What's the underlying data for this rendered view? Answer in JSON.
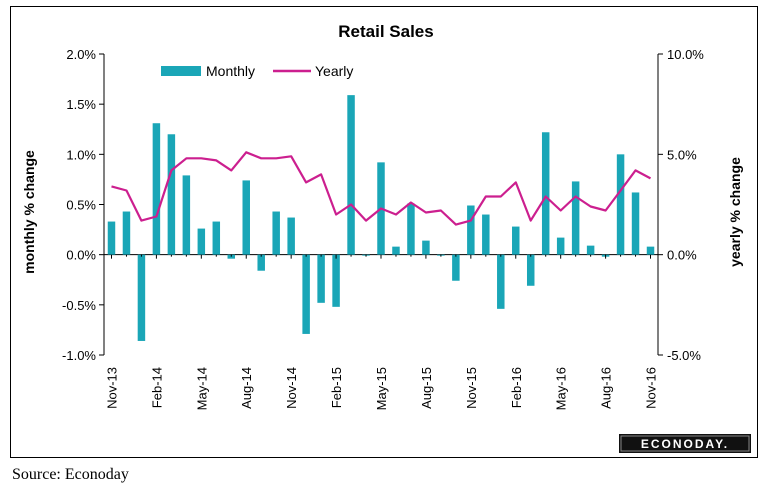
{
  "chart_data": {
    "type": "bar+line",
    "title": "Retail Sales",
    "y_left_label": "monthly % change",
    "y_right_label": "yearly % change",
    "y_left_ticks": [
      "2.0%",
      "1.5%",
      "1.0%",
      "0.5%",
      "0.0%",
      "-0.5%",
      "-1.0%"
    ],
    "y_right_ticks": [
      "10.0%",
      "5.0%",
      "0.0%",
      "-5.0%"
    ],
    "ylim_left": [
      -1.0,
      2.0
    ],
    "ylim_right": [
      -5.0,
      10.0
    ],
    "x_tick_labels": [
      "Nov-13",
      "Feb-14",
      "May-14",
      "Aug-14",
      "Nov-14",
      "Feb-15",
      "May-15",
      "Aug-15",
      "Nov-15",
      "Feb-16",
      "May-16",
      "Aug-16",
      "Nov-16"
    ],
    "categories": [
      "Nov-13",
      "Dec-13",
      "Jan-14",
      "Feb-14",
      "Mar-14",
      "Apr-14",
      "May-14",
      "Jun-14",
      "Jul-14",
      "Aug-14",
      "Sep-14",
      "Oct-14",
      "Nov-14",
      "Dec-14",
      "Jan-15",
      "Feb-15",
      "Mar-15",
      "Apr-15",
      "May-15",
      "Jun-15",
      "Jul-15",
      "Aug-15",
      "Sep-15",
      "Oct-15",
      "Nov-15",
      "Dec-15",
      "Jan-16",
      "Feb-16",
      "Mar-16",
      "Apr-16",
      "May-16",
      "Jun-16",
      "Jul-16",
      "Aug-16",
      "Sep-16",
      "Oct-16",
      "Nov-16"
    ],
    "legend_placement": "top-left",
    "series": [
      {
        "name": "Monthly",
        "type": "bar",
        "axis": "left",
        "color": "#1aa6b7",
        "values": [
          0.33,
          0.43,
          -0.86,
          1.31,
          1.2,
          0.79,
          0.26,
          0.33,
          -0.04,
          0.74,
          -0.16,
          0.43,
          0.37,
          -0.79,
          -0.48,
          -0.52,
          1.59,
          -0.01,
          0.92,
          0.08,
          0.51,
          0.14,
          -0.01,
          -0.26,
          0.49,
          0.4,
          -0.54,
          0.28,
          -0.31,
          1.22,
          0.17,
          0.73,
          0.09,
          -0.02,
          1.0,
          0.62,
          0.08
        ]
      },
      {
        "name": "Yearly",
        "type": "line",
        "axis": "right",
        "color": "#cc1f8f",
        "values": [
          3.4,
          3.2,
          1.7,
          1.9,
          4.2,
          4.8,
          4.8,
          4.7,
          4.2,
          5.1,
          4.8,
          4.8,
          4.9,
          3.6,
          4.0,
          2.0,
          2.5,
          1.7,
          2.3,
          2.0,
          2.6,
          2.1,
          2.2,
          1.5,
          1.7,
          2.9,
          2.9,
          3.6,
          1.7,
          2.9,
          2.2,
          2.9,
          2.4,
          2.2,
          3.2,
          4.2,
          3.8
        ]
      }
    ],
    "grid": false
  },
  "source_text": "Source: Econoday",
  "logo_text": "ECONODAY."
}
